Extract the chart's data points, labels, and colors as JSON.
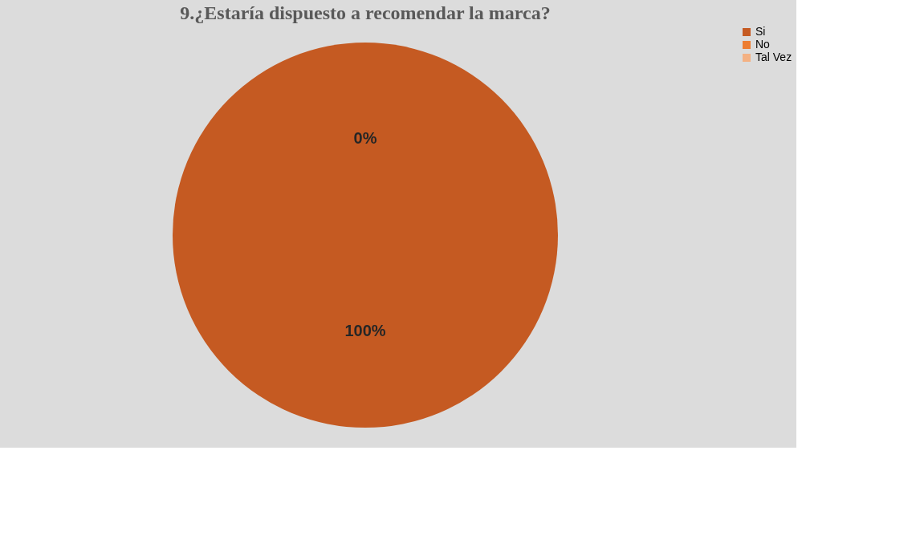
{
  "chart_data": {
    "type": "pie",
    "title": "9.¿Estaría dispuesto a recomendar la marca?",
    "categories": [
      "Si",
      "No",
      "Tal Vez"
    ],
    "values": [
      100,
      0,
      0
    ],
    "colors": [
      "#c55a22",
      "#ed7d31",
      "#f4b183"
    ],
    "value_labels": [
      "100%",
      "0%",
      null
    ],
    "legend": "right"
  }
}
